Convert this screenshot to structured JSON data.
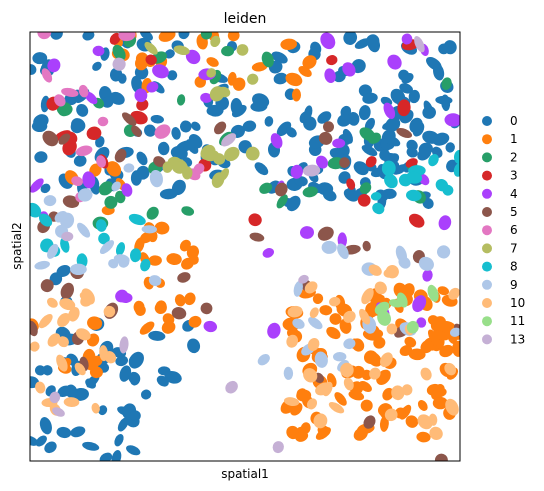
{
  "chart_data": {
    "type": "scatter",
    "title": "leiden",
    "xlabel": "spatial1",
    "ylabel": "spatial2",
    "xlim": [
      0,
      1
    ],
    "ylim": [
      0,
      1
    ],
    "grid": false,
    "legend_position": "right",
    "ticks_shown": false,
    "legend": [
      {
        "name": "0",
        "color": "#1f77b4"
      },
      {
        "name": "1",
        "color": "#ff7f0e"
      },
      {
        "name": "2",
        "color": "#279e68"
      },
      {
        "name": "3",
        "color": "#d62728"
      },
      {
        "name": "4",
        "color": "#aa40fc"
      },
      {
        "name": "5",
        "color": "#8c564b"
      },
      {
        "name": "6",
        "color": "#e377c2"
      },
      {
        "name": "7",
        "color": "#b5bd61"
      },
      {
        "name": "8",
        "color": "#17becf"
      },
      {
        "name": "9",
        "color": "#aec7e8"
      },
      {
        "name": "10",
        "color": "#ffbb78"
      },
      {
        "name": "11",
        "color": "#98df8a"
      },
      {
        "name": "13",
        "color": "#c5b0d5"
      }
    ],
    "regions": [
      {
        "cluster": "0",
        "x": [
          0.0,
          1.0
        ],
        "y": [
          0.62,
          1.0
        ],
        "density": 0.35
      },
      {
        "cluster": "0",
        "x": [
          0.0,
          0.25
        ],
        "y": [
          0.0,
          0.25
        ],
        "density": 0.5
      },
      {
        "cluster": "0",
        "x": [
          0.05,
          0.4
        ],
        "y": [
          0.15,
          0.45
        ],
        "density": 0.15
      },
      {
        "cluster": "0",
        "x": [
          0.6,
          1.0
        ],
        "y": [
          0.6,
          0.85
        ],
        "density": 0.45
      },
      {
        "cluster": "1",
        "x": [
          0.6,
          1.0
        ],
        "y": [
          0.05,
          0.4
        ],
        "density": 0.65
      },
      {
        "cluster": "1",
        "x": [
          0.0,
          0.18
        ],
        "y": [
          0.2,
          0.35
        ],
        "density": 0.35
      },
      {
        "cluster": "1",
        "x": [
          0.25,
          0.45
        ],
        "y": [
          0.3,
          0.55
        ],
        "density": 0.45
      },
      {
        "cluster": "1",
        "x": [
          0.2,
          0.65
        ],
        "y": [
          0.85,
          1.0
        ],
        "density": 0.3
      },
      {
        "cluster": "1",
        "x": [
          0.08,
          0.22
        ],
        "y": [
          0.58,
          0.72
        ],
        "density": 0.25
      },
      {
        "cluster": "2",
        "x": [
          0.0,
          1.0
        ],
        "y": [
          0.55,
          1.0
        ],
        "density": 0.06
      },
      {
        "cluster": "3",
        "x": [
          0.0,
          1.0
        ],
        "y": [
          0.55,
          1.0
        ],
        "density": 0.04
      },
      {
        "cluster": "4",
        "x": [
          0.0,
          1.0
        ],
        "y": [
          0.3,
          1.0
        ],
        "density": 0.05
      },
      {
        "cluster": "5",
        "x": [
          0.0,
          1.0
        ],
        "y": [
          0.0,
          0.8
        ],
        "density": 0.04
      },
      {
        "cluster": "6",
        "x": [
          0.0,
          0.4
        ],
        "y": [
          0.6,
          1.0
        ],
        "density": 0.08
      },
      {
        "cluster": "7",
        "x": [
          0.3,
          0.55
        ],
        "y": [
          0.64,
          0.72
        ],
        "density": 0.55
      },
      {
        "cluster": "7",
        "x": [
          0.25,
          0.55
        ],
        "y": [
          0.85,
          1.0
        ],
        "density": 0.15
      },
      {
        "cluster": "8",
        "x": [
          0.0,
          0.3
        ],
        "y": [
          0.45,
          0.6
        ],
        "density": 0.25
      },
      {
        "cluster": "8",
        "x": [
          0.8,
          1.0
        ],
        "y": [
          0.58,
          0.75
        ],
        "density": 0.35
      },
      {
        "cluster": "9",
        "x": [
          0.0,
          0.3
        ],
        "y": [
          0.4,
          0.7
        ],
        "density": 0.18
      },
      {
        "cluster": "9",
        "x": [
          0.5,
          1.0
        ],
        "y": [
          0.2,
          0.5
        ],
        "density": 0.12
      },
      {
        "cluster": "10",
        "x": [
          0.0,
          0.2
        ],
        "y": [
          0.12,
          0.4
        ],
        "density": 0.35
      },
      {
        "cluster": "10",
        "x": [
          0.6,
          1.0
        ],
        "y": [
          0.05,
          0.45
        ],
        "density": 0.2
      },
      {
        "cluster": "11",
        "x": [
          0.75,
          1.0
        ],
        "y": [
          0.3,
          0.4
        ],
        "density": 0.2
      },
      {
        "cluster": "13",
        "x": [
          0.0,
          1.0
        ],
        "y": [
          0.0,
          1.0
        ],
        "density": 0.01
      }
    ]
  }
}
